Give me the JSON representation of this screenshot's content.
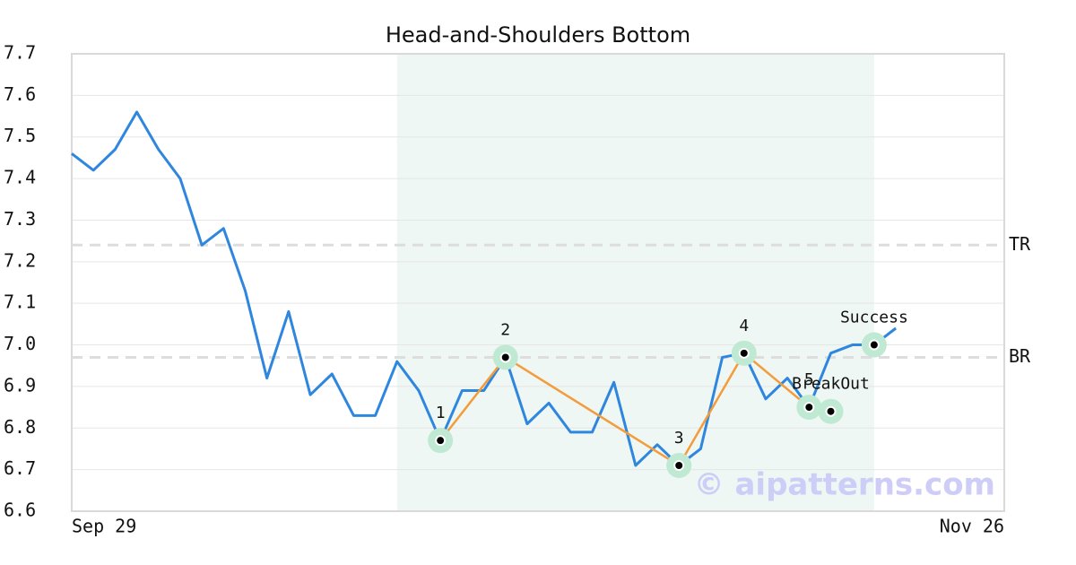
{
  "chart_data": {
    "type": "line",
    "title": "Head-and-Shoulders Bottom",
    "categories": [
      "Sep 29",
      null,
      null,
      null,
      null,
      null,
      null,
      null,
      null,
      null,
      null,
      null,
      null,
      null,
      null,
      null,
      null,
      null,
      null,
      null,
      null,
      null,
      null,
      null,
      null,
      null,
      null,
      null,
      null,
      null,
      null,
      null,
      null,
      null,
      null,
      null,
      null,
      null,
      null,
      null,
      null,
      null,
      null,
      "Nov 26"
    ],
    "values": [
      7.46,
      7.42,
      7.47,
      7.56,
      7.47,
      7.4,
      7.24,
      7.28,
      7.13,
      6.92,
      7.08,
      6.88,
      6.93,
      6.83,
      6.83,
      6.96,
      6.89,
      6.77,
      6.89,
      6.89,
      6.97,
      6.81,
      6.86,
      6.79,
      6.79,
      6.91,
      6.71,
      6.76,
      6.71,
      6.75,
      6.97,
      6.98,
      6.87,
      6.92,
      6.85,
      6.98,
      7.0,
      7.0,
      7.04,
      null,
      null,
      null,
      null,
      null
    ],
    "color": "#2e86de",
    "ylim": [
      6.6,
      7.7
    ],
    "yticks": [
      6.6,
      6.7,
      6.8,
      6.9,
      {
        "value": 7.0,
        "label": "7.0"
      },
      7.1,
      7.2,
      7.3,
      7.4,
      7.5,
      7.6,
      7.7
    ],
    "grid": true,
    "highlight": [
      15,
      37
    ],
    "pattern": {
      "color": "#f39c3d",
      "labels": [
        "1",
        "2",
        "3",
        "4",
        "5"
      ],
      "indices": [
        17,
        20,
        28,
        31,
        34
      ],
      "values": [
        6.77,
        6.97,
        6.71,
        6.98,
        6.85
      ]
    },
    "events": [
      {
        "label": "BreakOut",
        "index": 35,
        "value": 6.84
      },
      {
        "label": "Success",
        "index": 37,
        "value": 7.0
      }
    ],
    "levels": [
      {
        "label": "TR",
        "value": 7.24
      },
      {
        "label": "BR",
        "value": 6.97
      }
    ],
    "watermark": "© aipatterns.com"
  }
}
